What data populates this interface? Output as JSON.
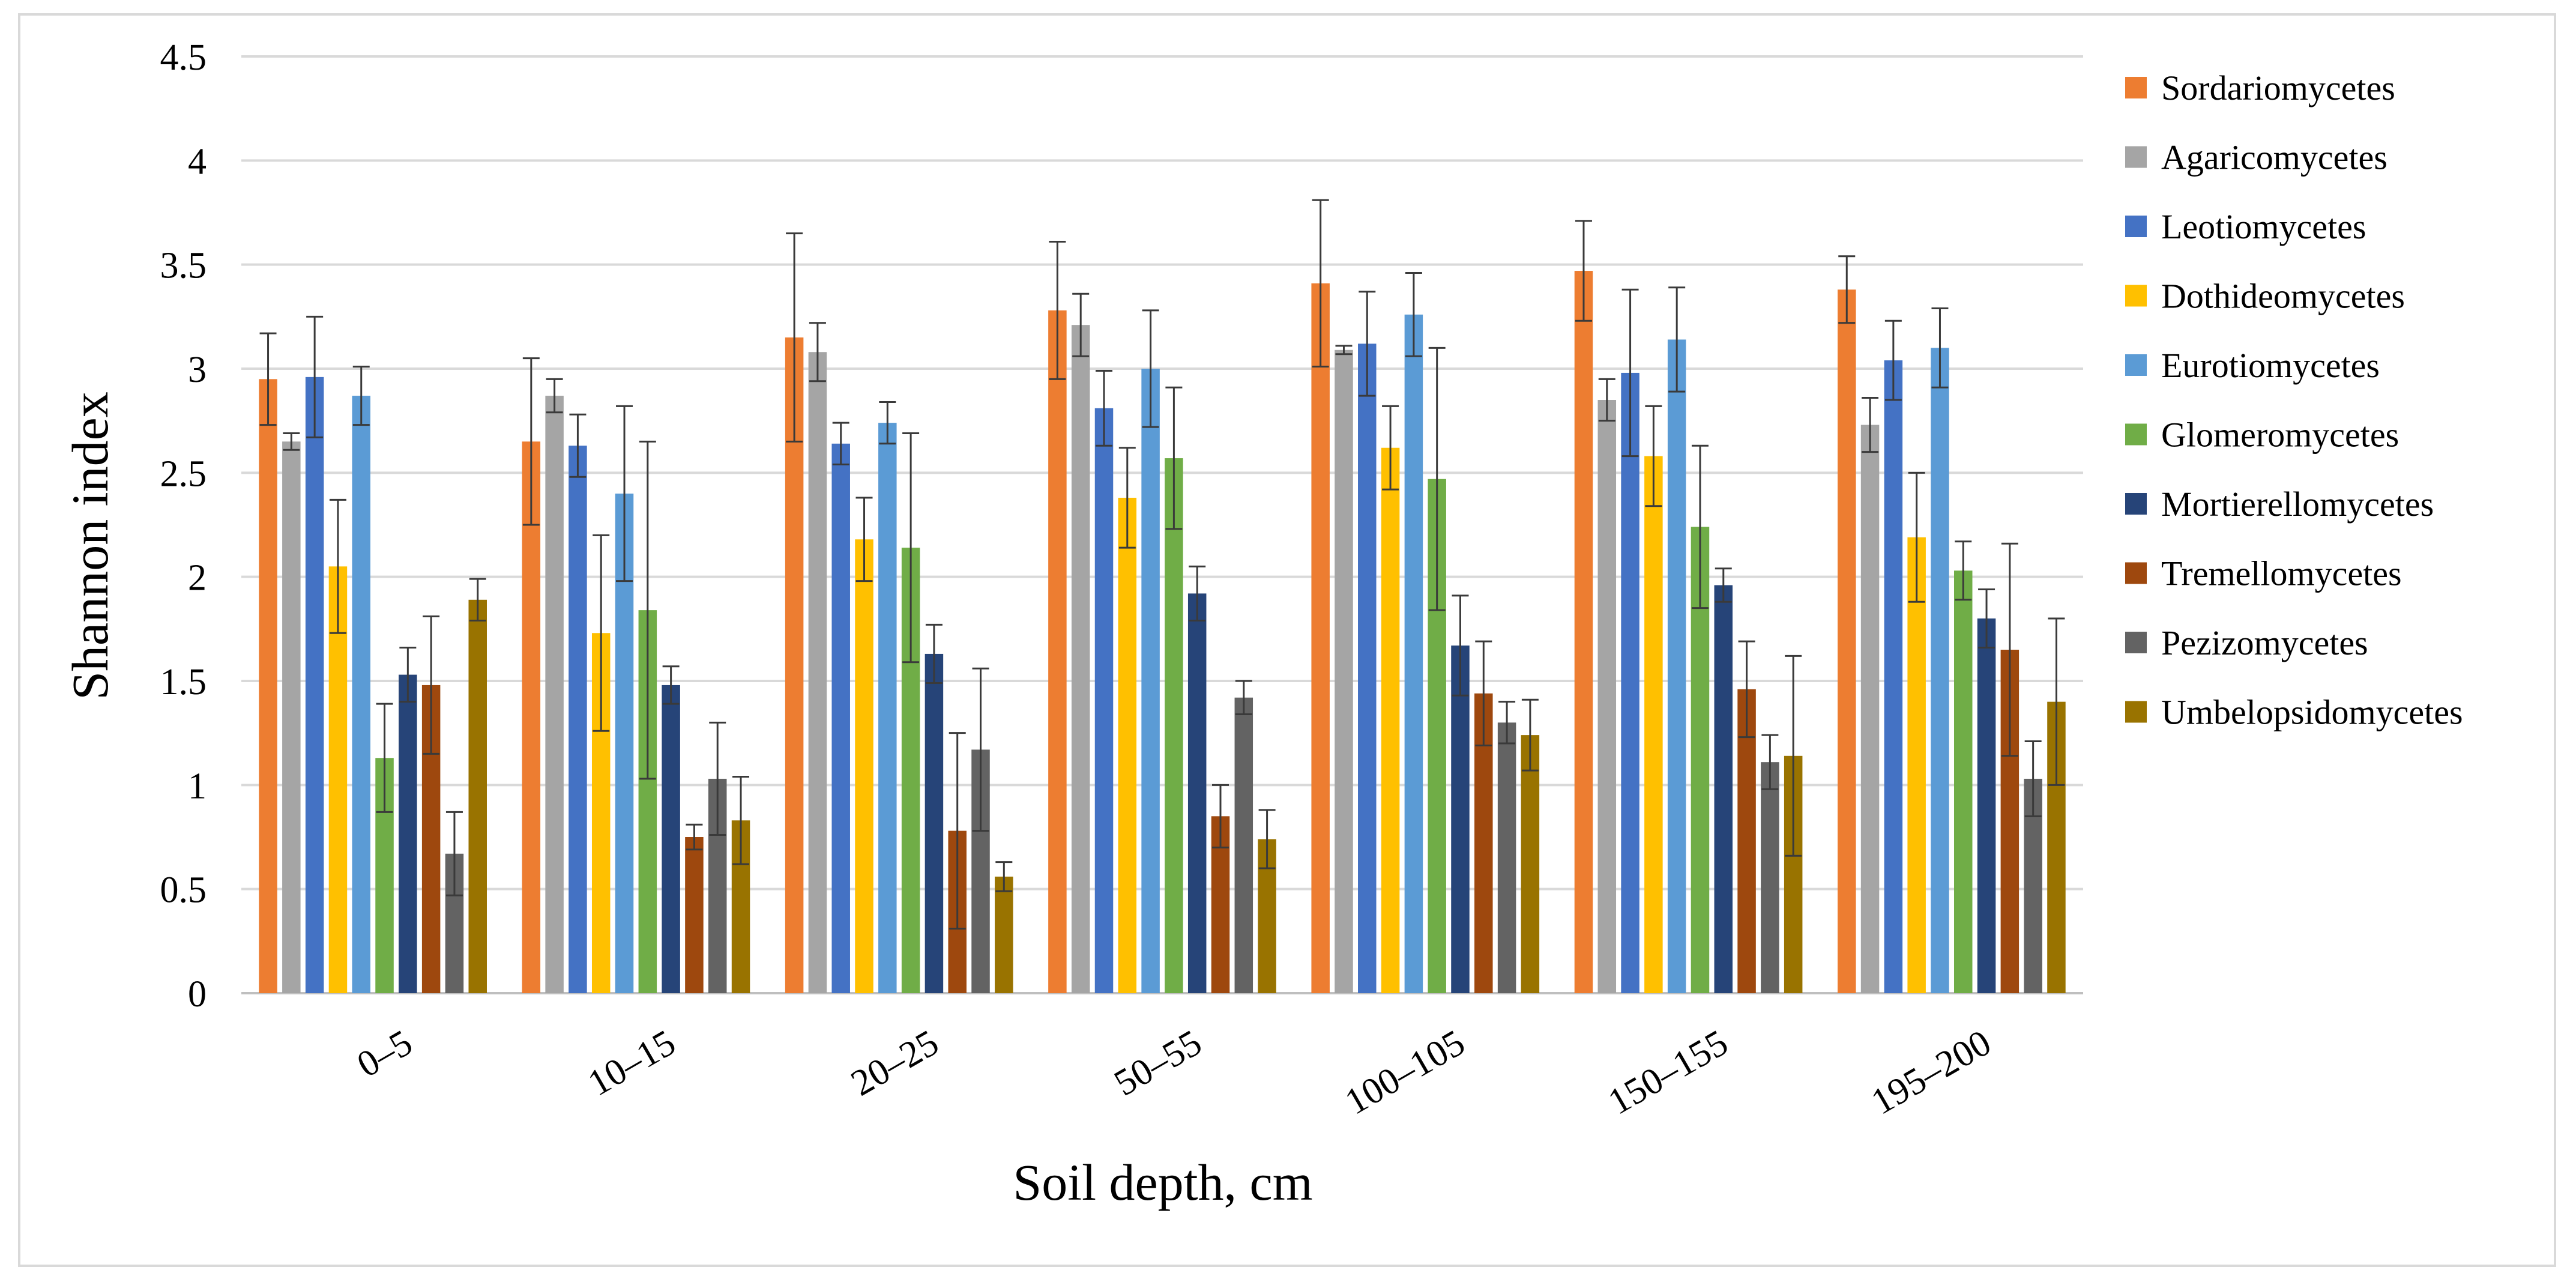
{
  "chart_data": {
    "type": "bar",
    "xlabel": "Soil depth, cm",
    "ylabel": "Shannon index",
    "ylim": [
      0,
      4.5
    ],
    "yticks": [
      0,
      0.5,
      1,
      1.5,
      2,
      2.5,
      3,
      3.5,
      4,
      4.5
    ],
    "yticklabels": [
      "0",
      "0.5",
      "1",
      "1.5",
      "2",
      "2.5",
      "3",
      "3.5",
      "4",
      "4.5"
    ],
    "grid": true,
    "legend_position": "right",
    "categories": [
      "0–5",
      "10–15",
      "20–25",
      "50–55",
      "100–105",
      "150–155",
      "195–200"
    ],
    "series": [
      {
        "name": "Sordariomycetes",
        "color": "#ed7d31",
        "values": [
          2.95,
          2.65,
          3.15,
          3.28,
          3.41,
          3.47,
          3.38
        ],
        "errors": [
          0.22,
          0.4,
          0.5,
          0.33,
          0.4,
          0.24,
          0.16
        ]
      },
      {
        "name": "Agaricomycetes",
        "color": "#a5a5a5",
        "values": [
          2.65,
          2.87,
          3.08,
          3.21,
          3.09,
          2.85,
          2.73
        ],
        "errors": [
          0.04,
          0.08,
          0.14,
          0.15,
          0.02,
          0.1,
          0.13
        ]
      },
      {
        "name": "Leotiomycetes",
        "color": "#4472c4",
        "values": [
          2.96,
          2.63,
          2.64,
          2.81,
          3.12,
          2.98,
          3.04
        ],
        "errors": [
          0.29,
          0.15,
          0.1,
          0.18,
          0.25,
          0.4,
          0.19
        ]
      },
      {
        "name": "Dothideomycetes",
        "color": "#ffc000",
        "values": [
          2.05,
          1.73,
          2.18,
          2.38,
          2.62,
          2.58,
          2.19
        ],
        "errors": [
          0.32,
          0.47,
          0.2,
          0.24,
          0.2,
          0.24,
          0.31
        ]
      },
      {
        "name": "Eurotiomycetes",
        "color": "#5b9bd5",
        "values": [
          2.87,
          2.4,
          2.74,
          3.0,
          3.26,
          3.14,
          3.1
        ],
        "errors": [
          0.14,
          0.42,
          0.1,
          0.28,
          0.2,
          0.25,
          0.19
        ]
      },
      {
        "name": "Glomeromycetes",
        "color": "#70ad47",
        "values": [
          1.13,
          1.84,
          2.14,
          2.57,
          2.47,
          2.24,
          2.03
        ],
        "errors": [
          0.26,
          0.81,
          0.55,
          0.34,
          0.63,
          0.39,
          0.14
        ]
      },
      {
        "name": "Mortierellomycetes",
        "color": "#264478",
        "values": [
          1.53,
          1.48,
          1.63,
          1.92,
          1.67,
          1.96,
          1.8
        ],
        "errors": [
          0.13,
          0.09,
          0.14,
          0.13,
          0.24,
          0.08,
          0.14
        ]
      },
      {
        "name": "Tremellomycetes",
        "color": "#9e480e",
        "values": [
          1.48,
          0.75,
          0.78,
          0.85,
          1.44,
          1.46,
          1.65
        ],
        "errors": [
          0.33,
          0.06,
          0.47,
          0.15,
          0.25,
          0.23,
          0.51
        ]
      },
      {
        "name": "Pezizomycetes",
        "color": "#636363",
        "values": [
          0.67,
          1.03,
          1.17,
          1.42,
          1.3,
          1.11,
          1.03
        ],
        "errors": [
          0.2,
          0.27,
          0.39,
          0.08,
          0.1,
          0.13,
          0.18
        ]
      },
      {
        "name": "Umbelopsidomycetes",
        "color": "#997300",
        "values": [
          1.89,
          0.83,
          0.56,
          0.74,
          1.24,
          1.14,
          1.4
        ],
        "errors": [
          0.1,
          0.21,
          0.07,
          0.14,
          0.17,
          0.48,
          0.4
        ]
      }
    ]
  }
}
